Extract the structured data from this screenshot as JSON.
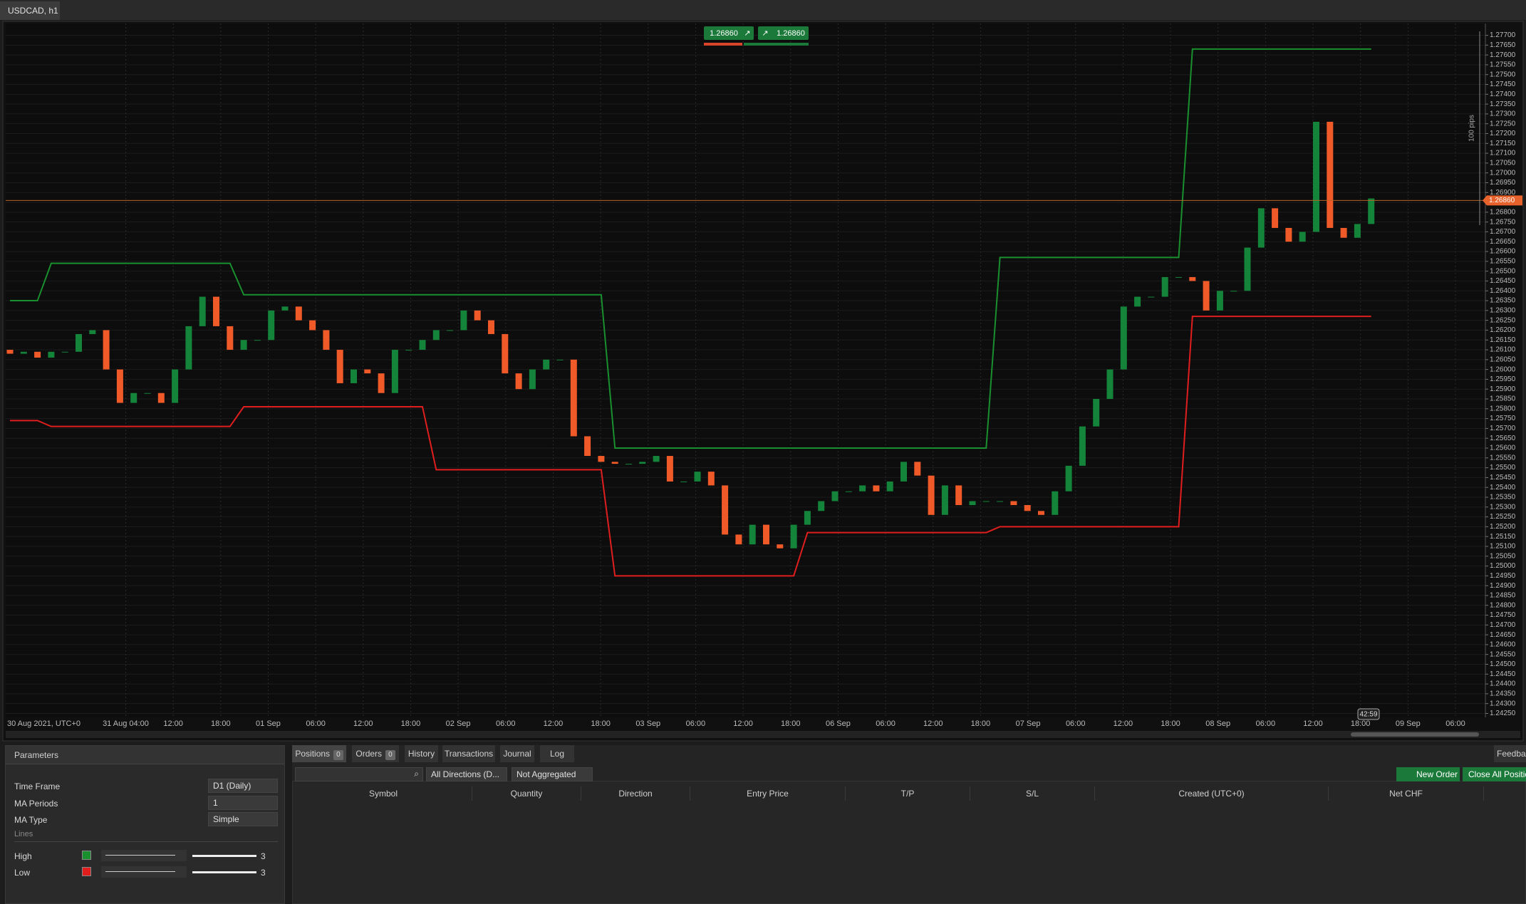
{
  "tab": "USDCAD, h1",
  "chart_data": {
    "type": "candlestick",
    "time_labels": [
      "30 Aug 2021, UTC+0",
      "31 Aug 04:00",
      "12:00",
      "18:00",
      "01 Sep",
      "06:00",
      "12:00",
      "18:00",
      "02 Sep",
      "06:00",
      "12:00",
      "18:00",
      "03 Sep",
      "06:00",
      "12:00",
      "18:00",
      "06 Sep",
      "06:00",
      "12:00",
      "18:00",
      "07 Sep",
      "06:00",
      "12:00",
      "18:00",
      "08 Sep",
      "06:00",
      "12:00",
      "18:00",
      "09 Sep",
      "06:00"
    ],
    "open": [
      1.261,
      1.2608,
      1.2609,
      1.2606,
      1.2609,
      1.2609,
      1.2618,
      1.262,
      1.26,
      1.2583,
      1.2588,
      1.2588,
      1.2583,
      1.26,
      1.2622,
      1.2637,
      1.2622,
      1.261,
      1.2615,
      1.2615,
      1.263,
      1.2632,
      1.2625,
      1.262,
      1.261,
      1.2593,
      1.26,
      1.2598,
      1.2588,
      1.261,
      1.261,
      1.2615,
      1.262,
      1.262,
      1.263,
      1.2625,
      1.2618,
      1.2598,
      1.259,
      1.26,
      1.2605,
      1.2605,
      1.2566,
      1.2556,
      1.2553,
      1.2552,
      1.2552,
      1.2553,
      1.2556,
      1.2543,
      1.2543,
      1.2548,
      1.2541,
      1.2516,
      1.2511,
      1.2521,
      1.2511,
      1.2509,
      1.2521,
      1.2528,
      1.2533,
      1.2538,
      1.2538,
      1.2541,
      1.2538,
      1.2543,
      1.2553,
      1.2546,
      1.2526,
      1.2541,
      1.2531,
      1.2533,
      1.2533,
      1.2533,
      1.2531,
      1.2528,
      1.2526,
      1.2538,
      1.2551,
      1.2571,
      1.2585,
      1.26,
      1.2632,
      1.2637,
      1.2637,
      1.2647,
      1.2647,
      1.2645,
      1.263,
      1.264,
      1.264,
      1.2662,
      1.2682,
      1.2672,
      1.2665,
      1.267,
      1.2726,
      1.2672,
      1.2667,
      1.2674
    ],
    "close": [
      1.2608,
      1.2609,
      1.2606,
      1.2609,
      1.2609,
      1.2618,
      1.262,
      1.26,
      1.2583,
      1.2588,
      1.2588,
      1.2583,
      1.26,
      1.2622,
      1.2637,
      1.2622,
      1.261,
      1.2615,
      1.2615,
      1.263,
      1.2632,
      1.2625,
      1.262,
      1.261,
      1.2593,
      1.26,
      1.2598,
      1.2588,
      1.261,
      1.261,
      1.2615,
      1.262,
      1.262,
      1.263,
      1.2625,
      1.2618,
      1.2598,
      1.259,
      1.26,
      1.2605,
      1.2605,
      1.2566,
      1.2556,
      1.2553,
      1.2552,
      1.2552,
      1.2553,
      1.2556,
      1.2543,
      1.2543,
      1.2548,
      1.2541,
      1.2516,
      1.2511,
      1.2521,
      1.2511,
      1.2509,
      1.2521,
      1.2528,
      1.2533,
      1.2538,
      1.2538,
      1.2541,
      1.2538,
      1.2543,
      1.2553,
      1.2546,
      1.2526,
      1.2541,
      1.2531,
      1.2533,
      1.2533,
      1.2533,
      1.2531,
      1.2528,
      1.2526,
      1.2538,
      1.2551,
      1.2571,
      1.2585,
      1.26,
      1.2632,
      1.2637,
      1.2637,
      1.2647,
      1.2647,
      1.2645,
      1.263,
      1.264,
      1.264,
      1.2662,
      1.2682,
      1.2672,
      1.2665,
      1.267,
      1.2726,
      1.2672,
      1.2667,
      1.2674,
      1.2687
    ],
    "up_color": "#14843a",
    "down_color": "#f05a28",
    "series": [
      {
        "name": "High",
        "color": "#1a8f2e",
        "values": [
          1.2635,
          1.2635,
          1.2635,
          1.2654,
          1.2654,
          1.2654,
          1.2654,
          1.2654,
          1.2654,
          1.2654,
          1.2654,
          1.2654,
          1.2654,
          1.2654,
          1.2654,
          1.2654,
          1.2654,
          1.2638,
          1.2638,
          1.2638,
          1.2638,
          1.2638,
          1.2638,
          1.2638,
          1.2638,
          1.2638,
          1.2638,
          1.2638,
          1.2638,
          1.2638,
          1.2638,
          1.2638,
          1.2638,
          1.2638,
          1.2638,
          1.2638,
          1.2638,
          1.2638,
          1.2638,
          1.2638,
          1.2638,
          1.2638,
          1.2638,
          1.2638,
          1.256,
          1.256,
          1.256,
          1.256,
          1.256,
          1.256,
          1.256,
          1.256,
          1.256,
          1.256,
          1.256,
          1.256,
          1.256,
          1.256,
          1.256,
          1.256,
          1.256,
          1.256,
          1.256,
          1.256,
          1.256,
          1.256,
          1.256,
          1.256,
          1.256,
          1.256,
          1.256,
          1.256,
          1.2657,
          1.2657,
          1.2657,
          1.2657,
          1.2657,
          1.2657,
          1.2657,
          1.2657,
          1.2657,
          1.2657,
          1.2657,
          1.2657,
          1.2657,
          1.2657,
          1.2763,
          1.2763,
          1.2763,
          1.2763,
          1.2763,
          1.2763,
          1.2763,
          1.2763,
          1.2763,
          1.2763,
          1.2763,
          1.2763,
          1.2763,
          1.2763
        ]
      },
      {
        "name": "Low",
        "color": "#e01e1e",
        "values": [
          1.2574,
          1.2574,
          1.2574,
          1.2571,
          1.2571,
          1.2571,
          1.2571,
          1.2571,
          1.2571,
          1.2571,
          1.2571,
          1.2571,
          1.2571,
          1.2571,
          1.2571,
          1.2571,
          1.2571,
          1.2581,
          1.2581,
          1.2581,
          1.2581,
          1.2581,
          1.2581,
          1.2581,
          1.2581,
          1.2581,
          1.2581,
          1.2581,
          1.2581,
          1.2581,
          1.2581,
          1.2549,
          1.2549,
          1.2549,
          1.2549,
          1.2549,
          1.2549,
          1.2549,
          1.2549,
          1.2549,
          1.2549,
          1.2549,
          1.2549,
          1.2549,
          1.2495,
          1.2495,
          1.2495,
          1.2495,
          1.2495,
          1.2495,
          1.2495,
          1.2495,
          1.2495,
          1.2495,
          1.2495,
          1.2495,
          1.2495,
          1.2495,
          1.2517,
          1.2517,
          1.2517,
          1.2517,
          1.2517,
          1.2517,
          1.2517,
          1.2517,
          1.2517,
          1.2517,
          1.2517,
          1.2517,
          1.2517,
          1.2517,
          1.252,
          1.252,
          1.252,
          1.252,
          1.252,
          1.252,
          1.252,
          1.252,
          1.252,
          1.252,
          1.252,
          1.252,
          1.252,
          1.252,
          1.2627,
          1.2627,
          1.2627,
          1.2627,
          1.2627,
          1.2627,
          1.2627,
          1.2627,
          1.2627,
          1.2627,
          1.2627,
          1.2627,
          1.2627,
          1.2627
        ]
      }
    ],
    "ylim": [
      1.2423,
      1.2776
    ],
    "yticks": [
      {
        "value": 1.2425,
        "label": "1.24250"
      },
      {
        "value": 1.243,
        "label": "1.24300"
      },
      {
        "value": 1.2435,
        "label": "1.24350"
      },
      {
        "value": 1.244,
        "label": "1.24400"
      },
      {
        "value": 1.2445,
        "label": "1.24450"
      },
      {
        "value": 1.245,
        "label": "1.24500"
      },
      {
        "value": 1.2455,
        "label": "1.24550"
      },
      {
        "value": 1.246,
        "label": "1.24600"
      },
      {
        "value": 1.2465,
        "label": "1.24650"
      },
      {
        "value": 1.247,
        "label": "1.24700"
      },
      {
        "value": 1.2475,
        "label": "1.24750"
      },
      {
        "value": 1.248,
        "label": "1.24800"
      },
      {
        "value": 1.2485,
        "label": "1.24850"
      },
      {
        "value": 1.249,
        "label": "1.24900"
      },
      {
        "value": 1.2495,
        "label": "1.24950"
      },
      {
        "value": 1.25,
        "label": "1.25000"
      },
      {
        "value": 1.2505,
        "label": "1.25050"
      },
      {
        "value": 1.251,
        "label": "1.25100"
      },
      {
        "value": 1.2515,
        "label": "1.25150"
      },
      {
        "value": 1.252,
        "label": "1.25200"
      },
      {
        "value": 1.2525,
        "label": "1.25250"
      },
      {
        "value": 1.253,
        "label": "1.25300"
      },
      {
        "value": 1.2535,
        "label": "1.25350"
      },
      {
        "value": 1.254,
        "label": "1.25400"
      },
      {
        "value": 1.2545,
        "label": "1.25450"
      },
      {
        "value": 1.255,
        "label": "1.25500"
      },
      {
        "value": 1.2555,
        "label": "1.25550"
      },
      {
        "value": 1.256,
        "label": "1.25600"
      },
      {
        "value": 1.2565,
        "label": "1.25650"
      },
      {
        "value": 1.257,
        "label": "1.25700"
      },
      {
        "value": 1.2575,
        "label": "1.25750"
      },
      {
        "value": 1.258,
        "label": "1.25800"
      },
      {
        "value": 1.2585,
        "label": "1.25850"
      },
      {
        "value": 1.259,
        "label": "1.25900"
      },
      {
        "value": 1.2595,
        "label": "1.25950"
      },
      {
        "value": 1.26,
        "label": "1.26000"
      },
      {
        "value": 1.2605,
        "label": "1.26050"
      },
      {
        "value": 1.261,
        "label": "1.26100"
      },
      {
        "value": 1.2615,
        "label": "1.26150"
      },
      {
        "value": 1.262,
        "label": "1.26200"
      },
      {
        "value": 1.2625,
        "label": "1.26250"
      },
      {
        "value": 1.263,
        "label": "1.26300"
      },
      {
        "value": 1.2635,
        "label": "1.26350"
      },
      {
        "value": 1.264,
        "label": "1.26400"
      },
      {
        "value": 1.2645,
        "label": "1.26450"
      },
      {
        "value": 1.265,
        "label": "1.26500"
      },
      {
        "value": 1.2655,
        "label": "1.26550"
      },
      {
        "value": 1.266,
        "label": "1.26600"
      },
      {
        "value": 1.2665,
        "label": "1.26650"
      },
      {
        "value": 1.267,
        "label": "1.26700"
      },
      {
        "value": 1.2675,
        "label": "1.26750"
      },
      {
        "value": 1.268,
        "label": "1.26800"
      },
      {
        "value": 1.2685,
        "label": "1.26850"
      },
      {
        "value": 1.269,
        "label": "1.26900"
      },
      {
        "value": 1.2695,
        "label": "1.26950"
      },
      {
        "value": 1.27,
        "label": "1.27000"
      },
      {
        "value": 1.2705,
        "label": "1.27050"
      },
      {
        "value": 1.271,
        "label": "1.27100"
      },
      {
        "value": 1.2715,
        "label": "1.27150"
      },
      {
        "value": 1.272,
        "label": "1.27200"
      },
      {
        "value": 1.2725,
        "label": "1.27250"
      },
      {
        "value": 1.273,
        "label": "1.27300"
      },
      {
        "value": 1.2735,
        "label": "1.27350"
      },
      {
        "value": 1.274,
        "label": "1.27400"
      },
      {
        "value": 1.2745,
        "label": "1.27450"
      },
      {
        "value": 1.275,
        "label": "1.27500"
      },
      {
        "value": 1.2755,
        "label": "1.27550"
      },
      {
        "value": 1.276,
        "label": "1.27600"
      },
      {
        "value": 1.2765,
        "label": "1.27650"
      },
      {
        "value": 1.277,
        "label": "1.27700"
      }
    ],
    "current_price": {
      "value": 1.2686,
      "label": "1.26860"
    },
    "sell_button": {
      "value": 1.2686,
      "label": "1.26860"
    },
    "buy_button": {
      "value": 1.2686,
      "label": "1.26860"
    },
    "range_label": "100 pips",
    "countdown": "42:59"
  },
  "parameters": {
    "title": "Parameters",
    "rows": [
      {
        "label": "Time Frame",
        "value": "D1 (Daily)"
      },
      {
        "label": "MA Periods",
        "value": "1"
      },
      {
        "label": "MA Type",
        "value": "Simple"
      }
    ],
    "lines_heading": "Lines",
    "line_thickness": [
      "3",
      "3"
    ]
  },
  "positions_panel": {
    "tabs": [
      {
        "label": "Positions",
        "count": "0"
      },
      {
        "label": "Orders",
        "count": "0"
      },
      {
        "label": "History"
      },
      {
        "label": "Transactions"
      },
      {
        "label": "Journal"
      },
      {
        "label": "Log"
      }
    ],
    "feedback": "Feedback",
    "filters": [
      "All Directions (D...",
      "Not Aggregated"
    ],
    "buttons": [
      "New Order",
      "Close All Positions"
    ],
    "columns": [
      "Symbol",
      "Quantity",
      "Direction",
      "Entry Price",
      "T/P",
      "S/L",
      "Created (UTC+0)",
      "Net CHF"
    ]
  }
}
